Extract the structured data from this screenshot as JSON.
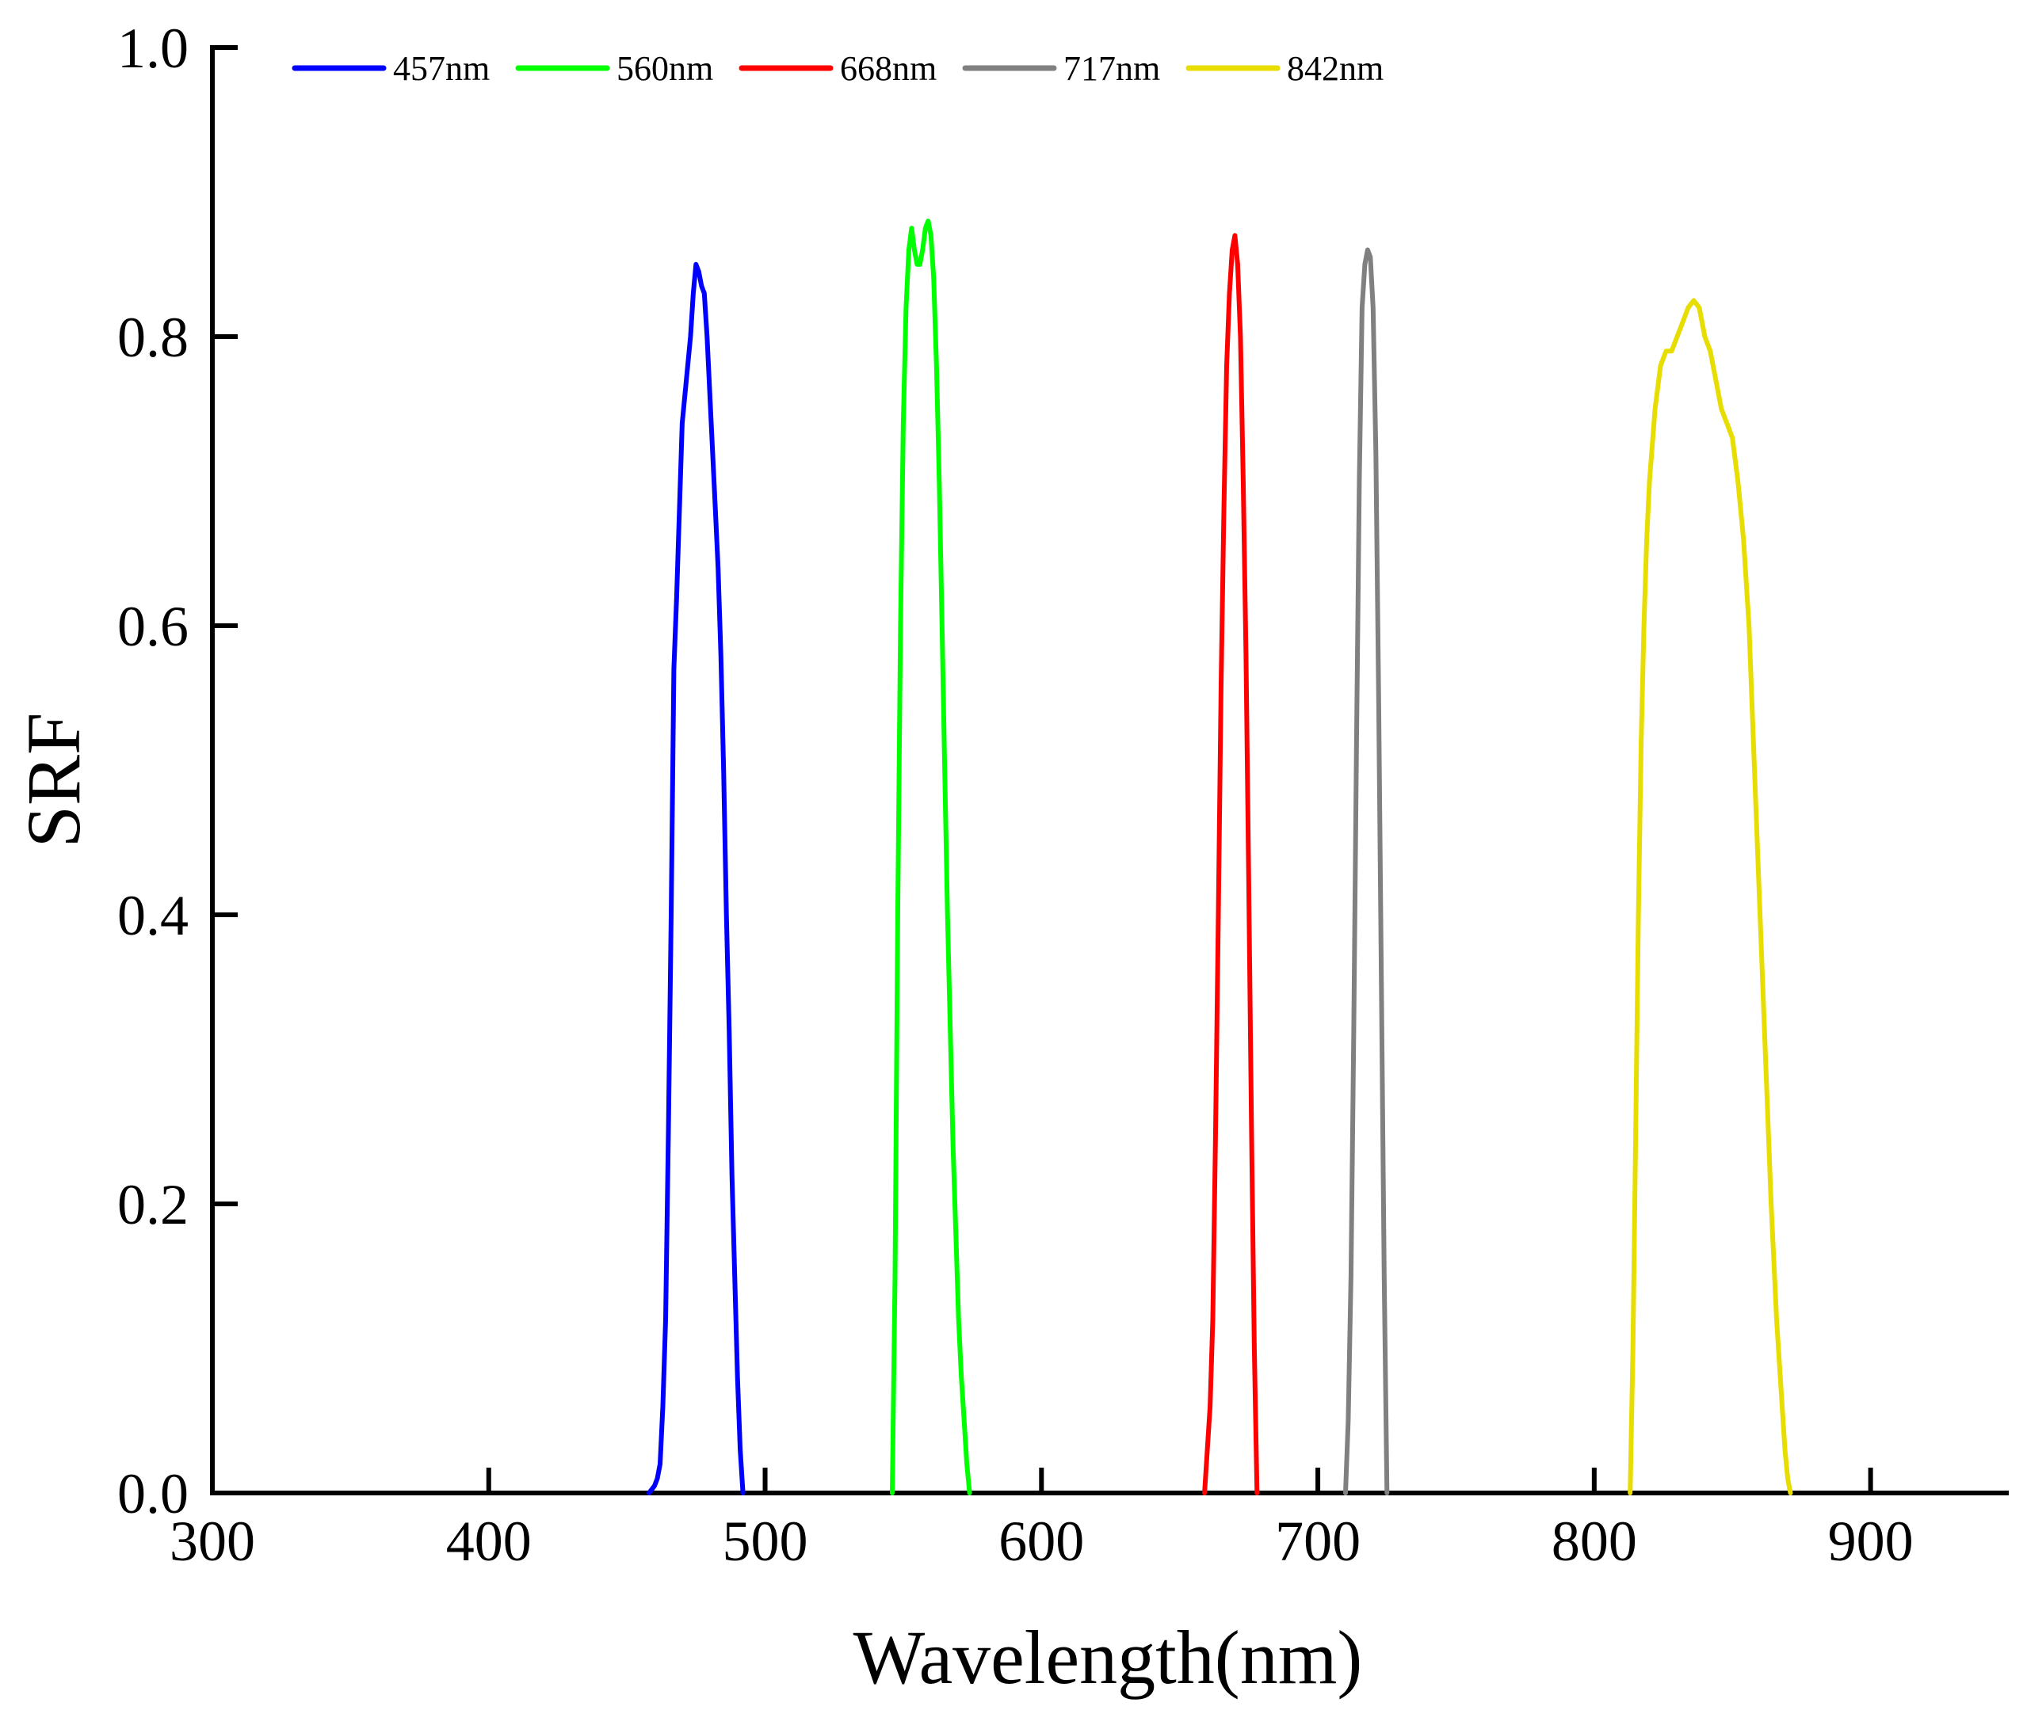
{
  "chart_data": {
    "type": "line",
    "title": "",
    "xlabel": "Wavelength(nm)",
    "ylabel": "SRF",
    "xlim": [
      300,
      950
    ],
    "ylim": [
      0.0,
      1.0
    ],
    "x_ticks": [
      300,
      400,
      500,
      600,
      700,
      800,
      900
    ],
    "x_tick_labels": [
      "300",
      "400",
      "500",
      "600",
      "700",
      "800",
      "900"
    ],
    "y_ticks": [
      0.0,
      0.2,
      0.4,
      0.6,
      0.8,
      1.0
    ],
    "y_tick_labels": [
      "0.0",
      "0.2",
      "0.4",
      "0.6",
      "0.8",
      "1.0"
    ],
    "grid": false,
    "legend_position": "top-left",
    "series": [
      {
        "name": "457nm",
        "color": "#0000ff",
        "x": [
          458,
          460,
          461,
          462,
          463,
          464,
          465,
          466,
          467,
          468,
          469,
          470,
          471,
          472,
          473,
          474,
          475,
          476,
          477,
          478,
          479,
          480,
          481,
          482,
          483,
          484,
          485,
          486,
          487,
          488,
          489,
          490,
          491,
          492
        ],
        "y": [
          0.0,
          0.005,
          0.01,
          0.02,
          0.06,
          0.12,
          0.25,
          0.4,
          0.57,
          0.62,
          0.68,
          0.74,
          0.76,
          0.78,
          0.8,
          0.83,
          0.85,
          0.845,
          0.835,
          0.83,
          0.8,
          0.76,
          0.72,
          0.68,
          0.64,
          0.58,
          0.5,
          0.4,
          0.32,
          0.22,
          0.15,
          0.08,
          0.03,
          0.0
        ]
      },
      {
        "name": "560nm",
        "color": "#00ff00",
        "x": [
          546,
          547,
          548,
          549,
          550,
          551,
          552,
          553,
          554,
          555,
          556,
          557,
          558,
          559,
          560,
          561,
          562,
          563,
          564,
          565,
          566,
          567,
          568,
          569,
          570,
          571,
          572,
          573,
          574
        ],
        "y": [
          0.0,
          0.15,
          0.4,
          0.6,
          0.74,
          0.82,
          0.86,
          0.875,
          0.86,
          0.85,
          0.85,
          0.86,
          0.875,
          0.88,
          0.87,
          0.84,
          0.78,
          0.7,
          0.6,
          0.5,
          0.4,
          0.32,
          0.24,
          0.18,
          0.12,
          0.08,
          0.05,
          0.02,
          0.0
        ]
      },
      {
        "name": "668nm",
        "color": "#ff0000",
        "x": [
          659,
          660,
          661,
          662,
          663,
          664,
          665,
          666,
          667,
          668,
          669,
          670,
          671,
          672,
          673,
          674,
          675,
          676,
          677,
          678
        ],
        "y": [
          0.0,
          0.03,
          0.06,
          0.12,
          0.25,
          0.4,
          0.56,
          0.68,
          0.78,
          0.83,
          0.86,
          0.87,
          0.85,
          0.8,
          0.7,
          0.58,
          0.42,
          0.25,
          0.1,
          0.0
        ]
      },
      {
        "name": "717nm",
        "color": "#808080",
        "x": [
          710,
          711,
          712,
          713,
          714,
          715,
          716,
          717,
          718,
          719,
          720,
          721,
          722,
          723,
          724,
          725
        ],
        "y": [
          0.0,
          0.05,
          0.15,
          0.32,
          0.52,
          0.7,
          0.82,
          0.85,
          0.86,
          0.855,
          0.82,
          0.72,
          0.55,
          0.35,
          0.15,
          0.0
        ]
      },
      {
        "name": "842nm",
        "color": "#ffff00",
        "x": [
          813,
          814,
          815,
          816,
          817,
          818,
          819,
          820,
          822,
          824,
          826,
          828,
          830,
          832,
          834,
          836,
          838,
          840,
          842,
          844,
          846,
          848,
          850,
          852,
          854,
          856,
          858,
          860,
          862,
          864,
          866,
          868,
          869,
          870,
          871
        ],
        "y": [
          0.0,
          0.1,
          0.25,
          0.4,
          0.52,
          0.6,
          0.66,
          0.7,
          0.75,
          0.78,
          0.79,
          0.79,
          0.8,
          0.81,
          0.82,
          0.825,
          0.82,
          0.8,
          0.79,
          0.77,
          0.75,
          0.74,
          0.73,
          0.7,
          0.66,
          0.6,
          0.5,
          0.4,
          0.3,
          0.2,
          0.12,
          0.06,
          0.03,
          0.01,
          0.0
        ]
      }
    ]
  }
}
